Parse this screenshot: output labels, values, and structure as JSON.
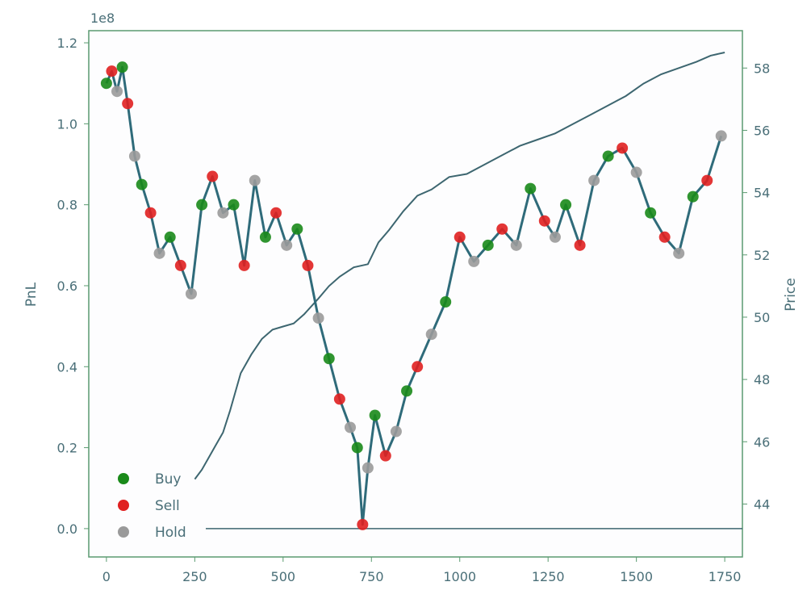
{
  "chart_data": {
    "type": "line",
    "title": "",
    "x_axis": {
      "label": "",
      "range": [
        -50,
        1800
      ],
      "ticks": [
        0,
        250,
        500,
        750,
        1000,
        1250,
        1500,
        1750
      ]
    },
    "y_axis_left": {
      "label": "PnL",
      "multiplier_label": "1e8",
      "range": [
        -0.07,
        1.23
      ],
      "ticks": [
        "0.0",
        "0.2",
        "0.4",
        "0.6",
        "0.8",
        "1.0",
        "1.2"
      ],
      "tick_values": [
        0.0,
        0.2,
        0.4,
        0.6,
        0.8,
        1.0,
        1.2
      ]
    },
    "y_axis_right": {
      "label": "Price",
      "range": [
        42.3,
        59.2
      ],
      "ticks": [
        44,
        46,
        48,
        50,
        52,
        54,
        56,
        58
      ]
    },
    "grid": false,
    "legend": {
      "placement": "lower-left",
      "entries": [
        {
          "label": "Buy",
          "color": "#1a8a1a"
        },
        {
          "label": "Sell",
          "color": "#e02020"
        },
        {
          "label": "Hold",
          "color": "#9a9a9a"
        }
      ]
    },
    "colors": {
      "pnl_line": "#2f6b7a",
      "price_line": "#3d6670",
      "frame": "#5a9a70",
      "zero_line": "#3d6670"
    },
    "series": [
      {
        "axis": "left",
        "kind": "pnl_with_action_markers",
        "x": [
          0,
          15,
          30,
          45,
          60,
          80,
          100,
          125,
          150,
          180,
          210,
          240,
          270,
          300,
          330,
          360,
          390,
          420,
          450,
          480,
          510,
          540,
          570,
          600,
          630,
          660,
          690,
          710,
          725,
          740,
          760,
          790,
          820,
          850,
          880,
          920,
          960,
          1000,
          1040,
          1080,
          1120,
          1160,
          1200,
          1240,
          1270,
          1300,
          1340,
          1380,
          1420,
          1460,
          1500,
          1540,
          1580,
          1620,
          1660,
          1700,
          1740
        ],
        "values": [
          1.1,
          1.13,
          1.08,
          1.14,
          1.05,
          0.92,
          0.85,
          0.78,
          0.68,
          0.72,
          0.65,
          0.58,
          0.8,
          0.87,
          0.78,
          0.8,
          0.65,
          0.86,
          0.72,
          0.78,
          0.7,
          0.74,
          0.65,
          0.52,
          0.42,
          0.32,
          0.25,
          0.2,
          0.01,
          0.15,
          0.28,
          0.18,
          0.24,
          0.34,
          0.4,
          0.48,
          0.56,
          0.72,
          0.66,
          0.7,
          0.74,
          0.7,
          0.84,
          0.76,
          0.72,
          0.8,
          0.7,
          0.86,
          0.92,
          0.94,
          0.88,
          0.78,
          0.72,
          0.68,
          0.82,
          0.86,
          0.97
        ]
      },
      {
        "axis": "right",
        "kind": "price_line",
        "x": [
          250,
          270,
          290,
          310,
          330,
          350,
          380,
          410,
          440,
          470,
          500,
          530,
          560,
          600,
          630,
          660,
          700,
          740,
          770,
          800,
          840,
          880,
          920,
          970,
          1020,
          1070,
          1120,
          1170,
          1220,
          1270,
          1320,
          1370,
          1420,
          1470,
          1520,
          1570,
          1620,
          1670,
          1710,
          1750
        ],
        "values": [
          44.8,
          45.1,
          45.5,
          45.9,
          46.3,
          47.0,
          48.2,
          48.8,
          49.3,
          49.6,
          49.7,
          49.8,
          50.1,
          50.6,
          51.0,
          51.3,
          51.6,
          51.7,
          52.4,
          52.8,
          53.4,
          53.9,
          54.1,
          54.5,
          54.6,
          54.9,
          55.2,
          55.5,
          55.7,
          55.9,
          56.2,
          56.5,
          56.8,
          57.1,
          57.5,
          57.8,
          58.0,
          58.2,
          58.4,
          58.5
        ]
      }
    ]
  }
}
